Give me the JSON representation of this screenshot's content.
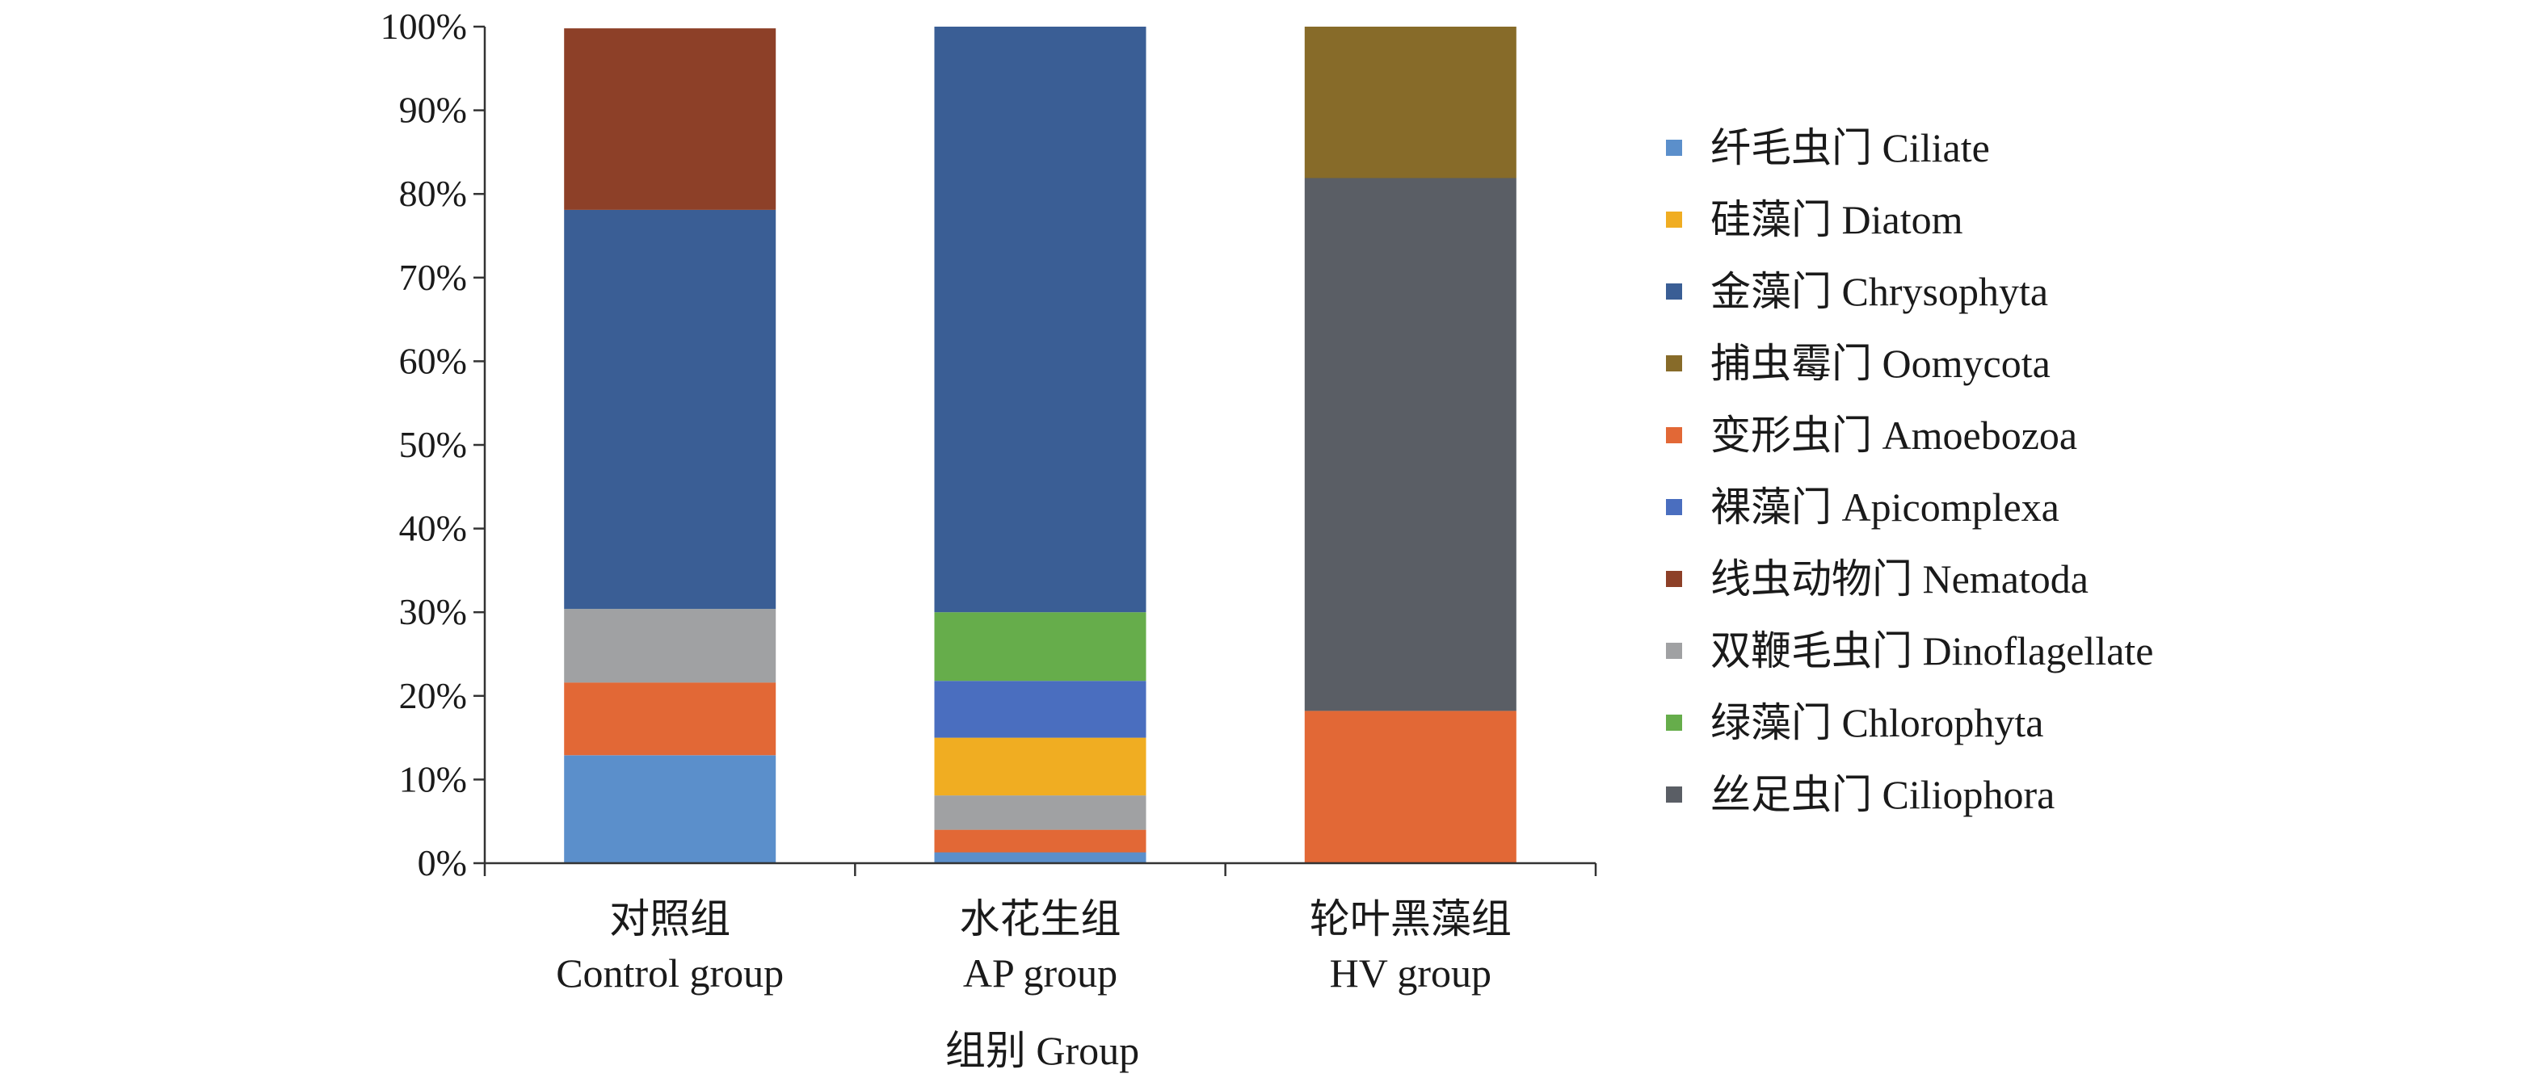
{
  "chart_data": {
    "type": "bar",
    "stacked": true,
    "normalized": true,
    "title": "",
    "xlabel": "组别 Group",
    "ylabel": "",
    "ylim": [
      0,
      100
    ],
    "yticks": [
      "0%",
      "10%",
      "20%",
      "30%",
      "40%",
      "50%",
      "60%",
      "70%",
      "80%",
      "90%",
      "100%"
    ],
    "categories": [
      {
        "line1": "对照组",
        "line2": "Control group"
      },
      {
        "line1": "水花生组",
        "line2": "AP group"
      },
      {
        "line1": "轮叶黑藻组",
        "line2": "HV group"
      }
    ],
    "legend_position": "right",
    "series": [
      {
        "name": "纤毛虫门 Ciliate",
        "color": "#5B8FCB",
        "values": [
          12.9,
          1.3,
          0
        ]
      },
      {
        "name": "硅藻门 Diatom",
        "color": "#F0AD22",
        "values": [
          0,
          6.9,
          0
        ]
      },
      {
        "name": "金藻门 Chrysophyta",
        "color": "#3A5E95",
        "values": [
          47.7,
          70.0,
          0
        ]
      },
      {
        "name": "捕虫霉门 Oomycota",
        "color": "#876B29",
        "values": [
          0,
          0,
          18.1
        ]
      },
      {
        "name": "变形虫门 Amoebozoa",
        "color": "#E26836",
        "values": [
          8.7,
          2.7,
          18.2
        ]
      },
      {
        "name": "裸藻门 Apicomplexa",
        "color": "#4A6EBF",
        "values": [
          0,
          6.8,
          0
        ]
      },
      {
        "name": "线虫动物门 Nematoda",
        "color": "#8D4028",
        "values": [
          21.7,
          0,
          0
        ]
      },
      {
        "name": "双鞭毛虫门 Dinoflagellate",
        "color": "#A0A1A3",
        "values": [
          8.8,
          4.1,
          0
        ]
      },
      {
        "name": "绿藻门 Chlorophyta",
        "color": "#66AD4B",
        "values": [
          0,
          8.2,
          0
        ]
      },
      {
        "name": "丝足虫门 Ciliophora",
        "color": "#5A5E65",
        "values": [
          0,
          0,
          63.7
        ]
      }
    ],
    "stack_order": [
      [
        "纤毛虫门 Ciliate",
        "变形虫门 Amoebozoa",
        "双鞭毛虫门 Dinoflagellate",
        "金藻门 Chrysophyta",
        "线虫动物门 Nematoda"
      ],
      [
        "纤毛虫门 Ciliate",
        "变形虫门 Amoebozoa",
        "双鞭毛虫门 Dinoflagellate",
        "硅藻门 Diatom",
        "裸藻门 Apicomplexa",
        "绿藻门 Chlorophyta",
        "金藻门 Chrysophyta"
      ],
      [
        "变形虫门 Amoebozoa",
        "丝足虫门 Ciliophora",
        "捕虫霉门 Oomycota"
      ]
    ]
  }
}
